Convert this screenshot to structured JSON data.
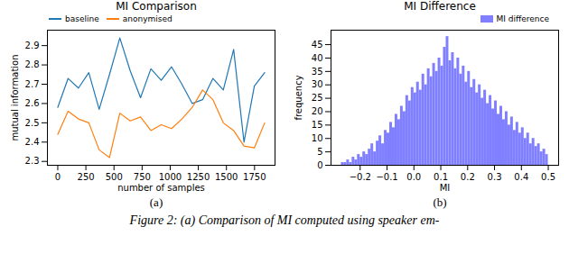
{
  "chart_data": [
    {
      "type": "line",
      "title": "MI Comparison",
      "x_label": "number of samples",
      "y_label": "mutual information",
      "caption": "(a)",
      "legend": "upper left",
      "x": [
        0,
        92,
        184,
        276,
        368,
        460,
        552,
        644,
        736,
        828,
        920,
        1012,
        1104,
        1196,
        1288,
        1380,
        1472,
        1564,
        1656,
        1748,
        1840
      ],
      "series": [
        {
          "name": "baseline",
          "color": "#1f77b4",
          "values": [
            2.58,
            2.73,
            2.68,
            2.76,
            2.57,
            2.75,
            2.94,
            2.77,
            2.63,
            2.78,
            2.72,
            2.79,
            2.7,
            2.6,
            2.62,
            2.73,
            2.67,
            2.88,
            2.4,
            2.69,
            2.76
          ]
        },
        {
          "name": "anonymised",
          "color": "#ff7f0e",
          "values": [
            2.44,
            2.56,
            2.52,
            2.5,
            2.36,
            2.32,
            2.55,
            2.51,
            2.53,
            2.46,
            2.49,
            2.47,
            2.52,
            2.58,
            2.67,
            2.62,
            2.5,
            2.46,
            2.38,
            2.37,
            2.5
          ]
        }
      ],
      "xlim": [
        -92,
        1932
      ],
      "xticks": [
        0,
        250,
        500,
        750,
        1000,
        1250,
        1500,
        1750
      ],
      "ylim": [
        2.28,
        2.98
      ],
      "yticks": [
        2.3,
        2.4,
        2.5,
        2.6,
        2.7,
        2.8,
        2.9
      ]
    },
    {
      "type": "histogram",
      "title": "MI Difference",
      "x_label": "MI",
      "y_label": "frequency",
      "caption": "(b)",
      "legend": "upper right",
      "bins": [
        -0.27,
        -0.26,
        -0.25,
        -0.24,
        -0.23,
        -0.22,
        -0.21,
        -0.2,
        -0.19,
        -0.18,
        -0.17,
        -0.16,
        -0.15,
        -0.14,
        -0.13,
        -0.12,
        -0.11,
        -0.1,
        -0.09,
        -0.08,
        -0.07,
        -0.06,
        -0.05,
        -0.04,
        -0.03,
        -0.02,
        -0.01,
        0.0,
        0.01,
        0.02,
        0.03,
        0.04,
        0.05,
        0.06,
        0.07,
        0.08,
        0.09,
        0.1,
        0.11,
        0.12,
        0.13,
        0.14,
        0.15,
        0.16,
        0.17,
        0.18,
        0.19,
        0.2,
        0.21,
        0.22,
        0.23,
        0.24,
        0.25,
        0.26,
        0.27,
        0.28,
        0.29,
        0.3,
        0.31,
        0.32,
        0.33,
        0.34,
        0.35,
        0.36,
        0.37,
        0.38,
        0.39,
        0.4,
        0.41,
        0.42,
        0.43,
        0.44,
        0.45,
        0.46,
        0.47,
        0.48,
        0.49,
        0.5
      ],
      "series": [
        {
          "name": "MI difference",
          "color": "#7f7fff",
          "values": [
            1,
            1,
            2,
            1,
            3,
            2,
            4,
            3,
            5,
            4,
            6,
            8,
            5,
            9,
            11,
            8,
            13,
            12,
            16,
            14,
            19,
            17,
            22,
            20,
            26,
            24,
            29,
            27,
            31,
            28,
            34,
            30,
            36,
            33,
            38,
            35,
            40,
            37,
            44,
            48,
            39,
            42,
            36,
            40,
            34,
            37,
            31,
            35,
            29,
            32,
            27,
            30,
            25,
            28,
            23,
            26,
            21,
            24,
            19,
            22,
            17,
            20,
            15,
            18,
            13,
            16,
            12,
            14,
            10,
            12,
            8,
            10,
            7,
            8,
            5,
            6,
            4
          ]
        }
      ],
      "xlim": [
        -0.3085,
        0.5385
      ],
      "xticks": [
        {
          "value": -0.2,
          "label": "−0.2"
        },
        {
          "value": -0.1,
          "label": "−0.1"
        },
        {
          "value": 0,
          "label": "0.0"
        },
        0.1,
        0.2,
        0.3,
        0.4,
        0.5
      ],
      "ylim": [
        0,
        50.4
      ],
      "yticks": [
        0,
        5,
        10,
        15,
        20,
        25,
        30,
        35,
        40,
        45
      ]
    }
  ],
  "caption": "Figure 2: (a) Comparison of MI computed using speaker em-"
}
